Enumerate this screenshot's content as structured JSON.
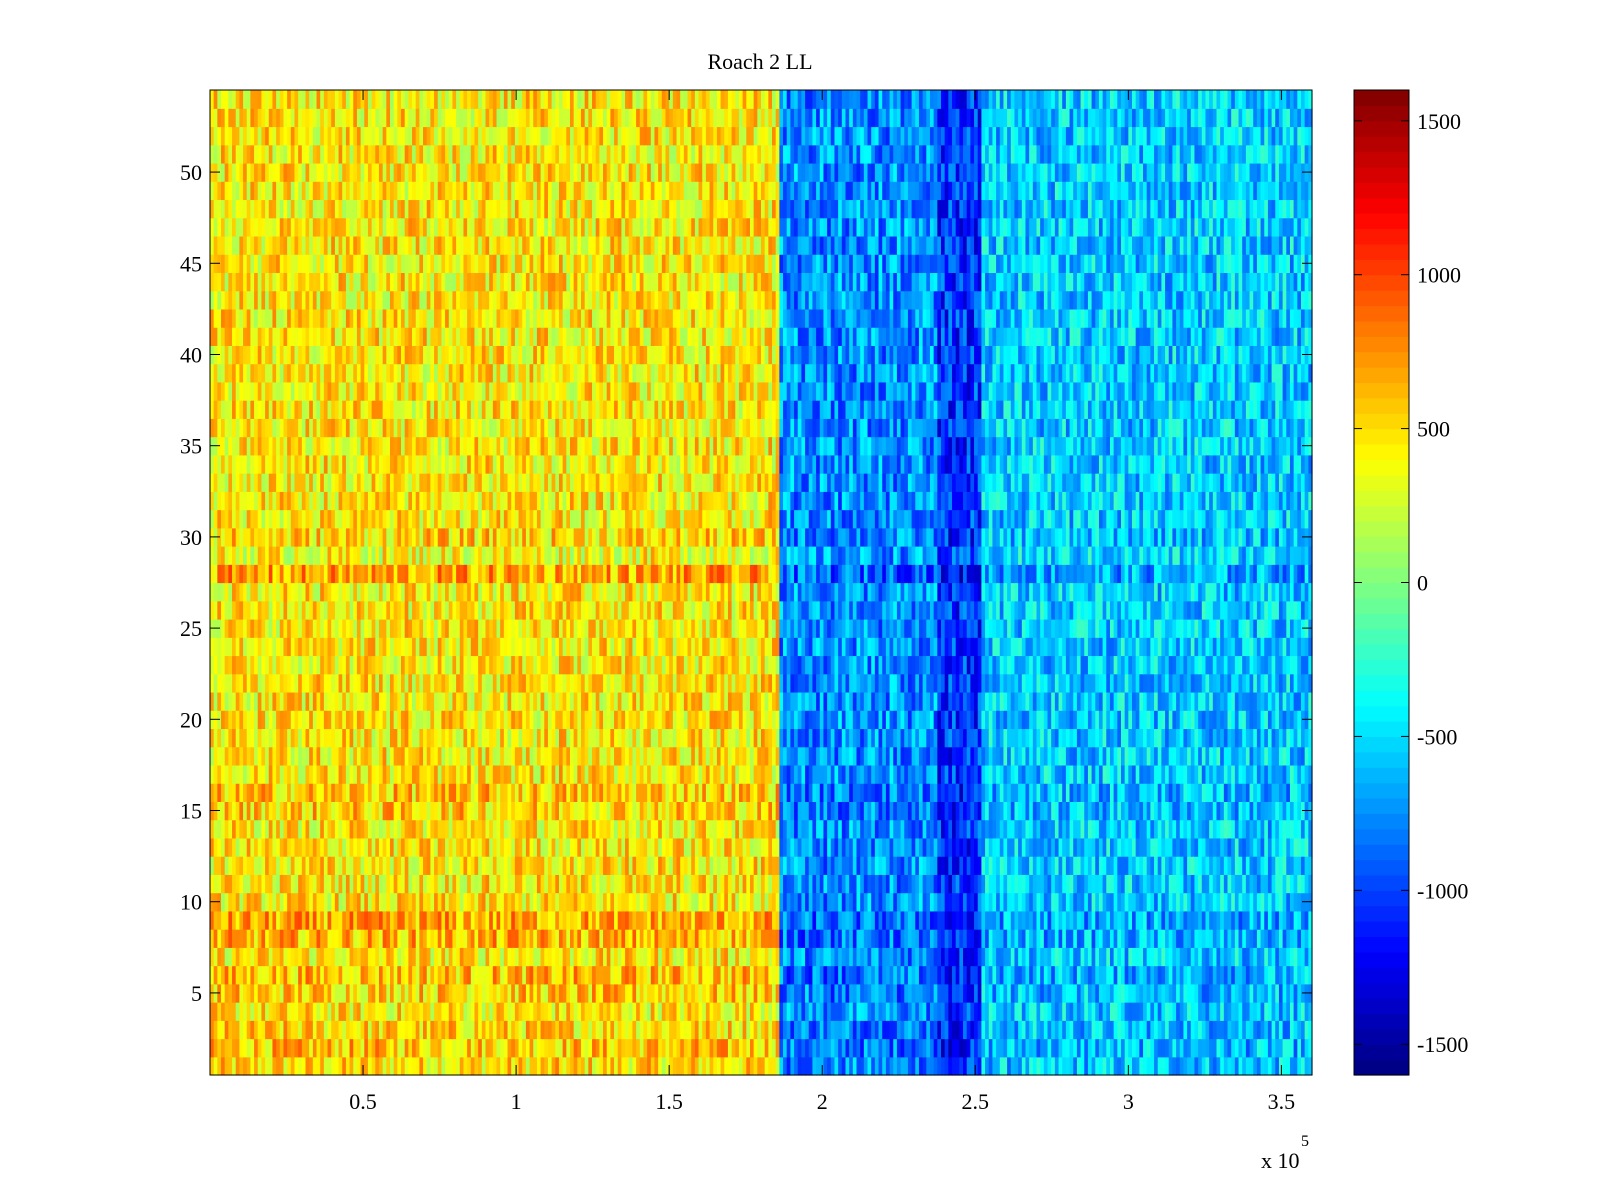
{
  "chart_data": {
    "type": "heatmap",
    "title": "Roach 2 LL",
    "xlabel": "",
    "ylabel": "",
    "x_range": [
      0,
      360000
    ],
    "y_range": [
      0.5,
      54.5
    ],
    "x_ticks": [
      50000,
      100000,
      150000,
      200000,
      250000,
      300000,
      350000
    ],
    "x_tick_labels": [
      "0.5",
      "1",
      "1.5",
      "2",
      "2.5",
      "3",
      "3.5"
    ],
    "x_exponent_label": "x 10",
    "x_exponent_power": "5",
    "y_ticks": [
      5,
      10,
      15,
      20,
      25,
      30,
      35,
      40,
      45,
      50
    ],
    "y_tick_labels": [
      "5",
      "10",
      "15",
      "20",
      "25",
      "30",
      "35",
      "40",
      "45",
      "50"
    ],
    "rows": 54,
    "colormap": "jet",
    "clim": [
      -1600,
      1600
    ],
    "colorbar": {
      "ticks": [
        1500,
        1000,
        500,
        0,
        -500,
        -1000,
        -1500
      ],
      "tick_labels": [
        "1500",
        "1000",
        "500",
        "0",
        "-500",
        "-1000",
        "-1500"
      ]
    },
    "regions": [
      {
        "x_from": 0,
        "x_to": 186000,
        "mean_value": 450,
        "description": "warm"
      },
      {
        "x_from": 186000,
        "x_to": 238000,
        "mean_value": -750
      },
      {
        "x_from": 238000,
        "x_to": 252000,
        "mean_value": -1050
      },
      {
        "x_from": 252000,
        "x_to": 360000,
        "mean_value": -550
      }
    ]
  }
}
